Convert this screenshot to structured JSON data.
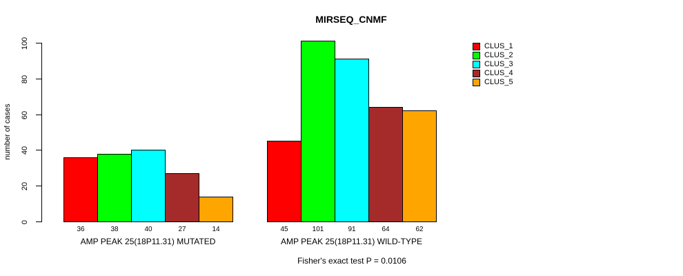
{
  "chart_data": {
    "type": "bar",
    "title": "MIRSEQ_CNMF",
    "ylabel": "number of cases",
    "xlabel": "",
    "ylim": [
      0,
      100
    ],
    "yticks": [
      0,
      20,
      40,
      60,
      80,
      100
    ],
    "grid": false,
    "legend_position": "right",
    "bar_value_labels": true,
    "categories": [
      "AMP PEAK 25(18P11.31) MUTATED",
      "AMP PEAK 25(18P11.31) WILD-TYPE"
    ],
    "series": [
      {
        "name": "CLUS_1",
        "color": "#ff0000",
        "values": [
          36,
          45
        ]
      },
      {
        "name": "CLUS_2",
        "color": "#00ff00",
        "values": [
          38,
          101
        ]
      },
      {
        "name": "CLUS_3",
        "color": "#00ffff",
        "values": [
          40,
          91
        ]
      },
      {
        "name": "CLUS_4",
        "color": "#a52a2a",
        "values": [
          27,
          64
        ]
      },
      {
        "name": "CLUS_5",
        "color": "#ffa500",
        "values": [
          14,
          62
        ]
      }
    ],
    "note": "Fisher's exact test P = 0.0106",
    "axis_color": "#000000",
    "background_color": "#ffffff"
  }
}
